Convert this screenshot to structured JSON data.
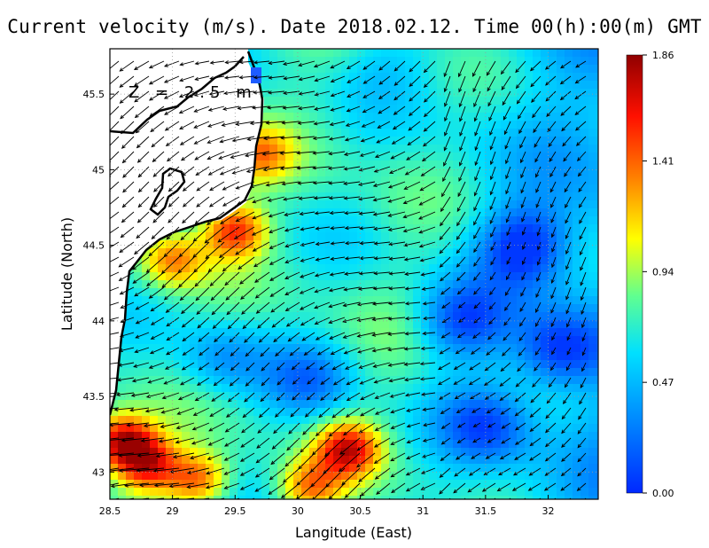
{
  "title": "Current velocity (m/s). Date 2018.02.12. Time 00(h):00(m) GMT",
  "depth_label": "Z = 2.5 m",
  "chart_data": {
    "type": "heatmap",
    "title": "Current velocity (m/s). Date 2018.02.12. Time 00(h):00(m) GMT",
    "xlabel": "Langitude (East)",
    "ylabel": "Latitude (North)",
    "xlim": [
      28.5,
      32.4
    ],
    "ylim": [
      42.82,
      45.8
    ],
    "xticks": [
      28.5,
      29,
      29.5,
      30,
      30.5,
      31,
      31.5,
      32
    ],
    "xtick_labels": [
      "28.5",
      "29",
      "29.5",
      "30",
      "30.5",
      "31",
      "31.5",
      "32"
    ],
    "yticks": [
      43,
      43.5,
      44,
      44.5,
      45,
      45.5
    ],
    "ytick_labels": [
      "43",
      "43.5",
      "44",
      "44.5",
      "45",
      "45.5"
    ],
    "grid": true,
    "colorbar": {
      "min": 0.0,
      "max": 1.86,
      "tick_values": [
        0.0,
        0.47,
        0.94,
        1.41,
        1.86
      ],
      "tick_labels": [
        "0.00",
        "0.47",
        "0.94",
        "1.41",
        "1.86"
      ],
      "colormap": [
        "#0028ff",
        "#0090ff",
        "#00e0ff",
        "#60ff90",
        "#ffff00",
        "#ff8000",
        "#ff1000",
        "#900000"
      ]
    },
    "vector_field": "surface current arrows, predominantly toward south-west",
    "hotspots": [
      {
        "lon": 29.5,
        "lat": 44.6,
        "speed": 1.5
      },
      {
        "lon": 29.0,
        "lat": 44.4,
        "speed": 1.3
      },
      {
        "lon": 28.6,
        "lat": 43.2,
        "speed": 1.75
      },
      {
        "lon": 28.8,
        "lat": 43.05,
        "speed": 1.55
      },
      {
        "lon": 29.2,
        "lat": 42.95,
        "speed": 1.4
      },
      {
        "lon": 30.4,
        "lat": 43.15,
        "speed": 1.6
      },
      {
        "lon": 30.1,
        "lat": 42.9,
        "speed": 1.3
      },
      {
        "lon": 29.7,
        "lat": 45.1,
        "speed": 1.25
      }
    ],
    "lows": [
      {
        "lon": 31.8,
        "lat": 44.5,
        "speed": 0.12
      },
      {
        "lon": 31.3,
        "lat": 44.0,
        "speed": 0.2
      },
      {
        "lon": 32.1,
        "lat": 43.8,
        "speed": 0.15
      },
      {
        "lon": 31.5,
        "lat": 43.3,
        "speed": 0.25
      },
      {
        "lon": 30.1,
        "lat": 43.6,
        "speed": 0.3
      },
      {
        "lon": 29.4,
        "lat": 43.75,
        "speed": 0.35
      },
      {
        "lon": 30.7,
        "lat": 45.7,
        "speed": 0.55
      }
    ]
  }
}
